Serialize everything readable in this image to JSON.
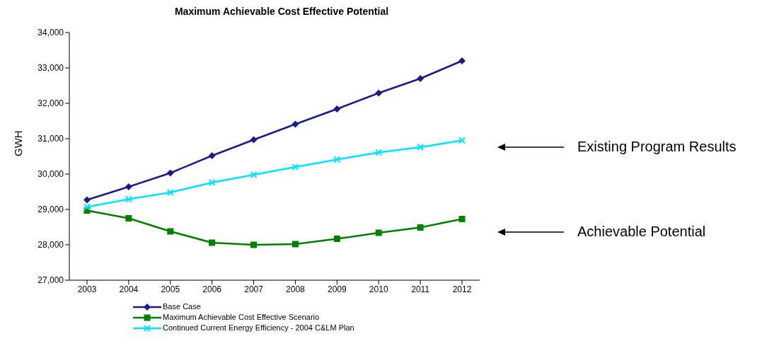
{
  "chart_data": {
    "type": "line",
    "title": "Maximum Achievable Cost Effective Potential",
    "ylabel": "GWH",
    "categories": [
      "2003",
      "2004",
      "2005",
      "2006",
      "2007",
      "2008",
      "2009",
      "2010",
      "2011",
      "2012"
    ],
    "series": [
      {
        "name": "Base Case",
        "color": "#1a1a8c",
        "marker": "diamond",
        "values": [
          29270,
          29640,
          30030,
          30520,
          30970,
          31410,
          31840,
          32290,
          32700,
          33200
        ]
      },
      {
        "name": "Maximum Achievable Cost Effective Scenario",
        "color": "#008000",
        "marker": "square",
        "values": [
          28970,
          28750,
          28380,
          28060,
          28000,
          28020,
          28170,
          28340,
          28490,
          28730
        ]
      },
      {
        "name": "Continued Current Energy Efficiency - 2004 C&LM Plan",
        "color": "#00e5ff",
        "marker": "cross",
        "values": [
          29070,
          29290,
          29480,
          29760,
          29980,
          30200,
          30410,
          30610,
          30760,
          30950
        ]
      }
    ],
    "ylim": [
      27000,
      34000
    ],
    "yticks": [
      {
        "value": 27000,
        "label": "27,000"
      },
      {
        "value": 28000,
        "label": "28,000"
      },
      {
        "value": 29000,
        "label": "29,000"
      },
      {
        "value": 30000,
        "label": "30,000"
      },
      {
        "value": 31000,
        "label": "31,000"
      },
      {
        "value": 32000,
        "label": "32,000"
      },
      {
        "value": 33000,
        "label": "33,000"
      },
      {
        "value": 34000,
        "label": "34,000"
      }
    ],
    "grid": false,
    "legend": "bottom",
    "annotations": [
      "Existing Program Results",
      "Achievable Potential"
    ]
  }
}
